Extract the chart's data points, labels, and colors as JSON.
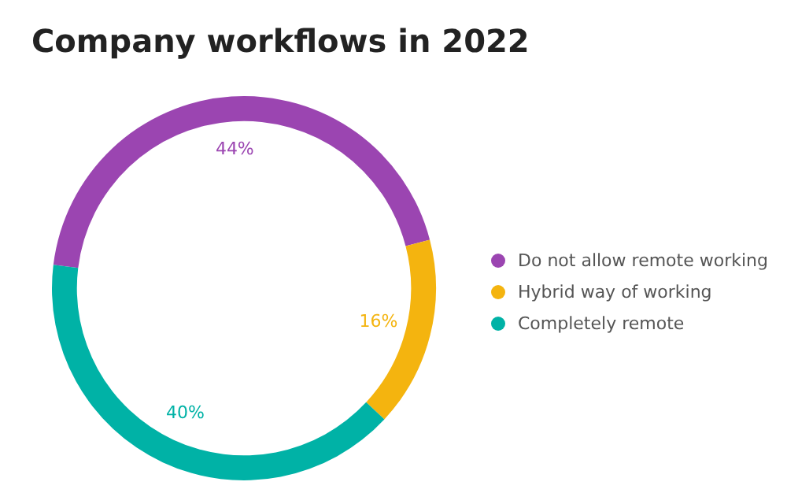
{
  "chart_data": {
    "type": "donut",
    "title": "Company workflows in 2022",
    "categories": [
      "Do not allow remote working",
      "Hybrid way of working",
      "Completely remote"
    ],
    "values": [
      44,
      16,
      40
    ],
    "value_labels": [
      "44%",
      "16%",
      "40%"
    ],
    "colors": [
      "#9b45b1",
      "#f4b40f",
      "#00b2a6"
    ],
    "legend": "right"
  }
}
